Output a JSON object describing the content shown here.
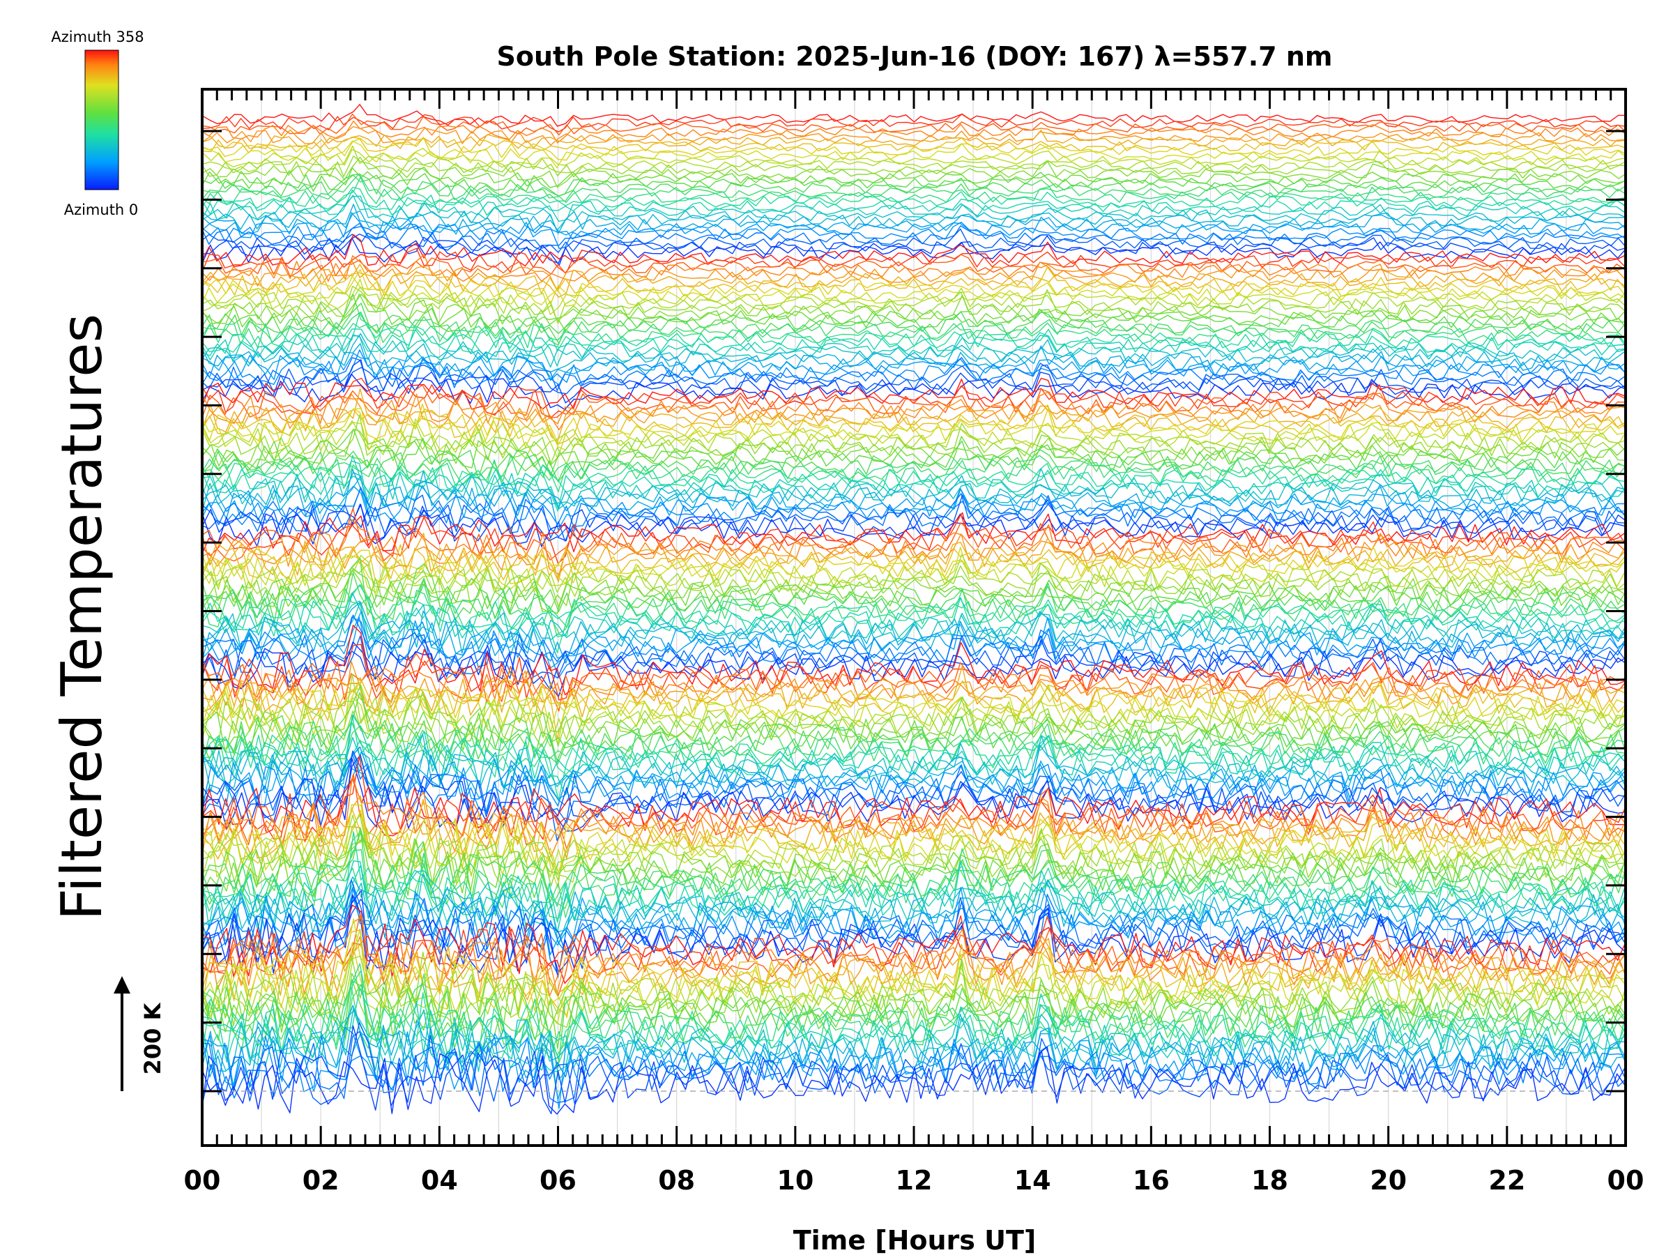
{
  "chart_data": {
    "type": "line",
    "title": "South Pole Station: 2025-Jun-16 (DOY: 167) λ=557.7 nm",
    "xlabel": "Time [Hours UT]",
    "ylabel": "Filtered Temperatures",
    "xlim": [
      0,
      24
    ],
    "x_tick_labels": [
      "00",
      "02",
      "04",
      "06",
      "08",
      "10",
      "12",
      "14",
      "16",
      "18",
      "20",
      "22",
      "00"
    ],
    "colorbar": {
      "top_label": "Azimuth 358",
      "bottom_label": "Azimuth 0",
      "colormap": "rainbow (blue → cyan → green → yellow → red)",
      "range": [
        0,
        358
      ]
    },
    "scale_bar": {
      "label": "200 K",
      "value": 200
    },
    "offset_baselines": 15,
    "series_description": "Many stacked filtered temperature traces, one per azimuth, coloured by azimuth; each stack offset vertically",
    "grid": true,
    "grid_style": "faint vertical lines at each hour",
    "colors": {
      "blue": "#1030e8",
      "cyan": "#20b8d8",
      "green": "#50d040",
      "yellow": "#d8d820",
      "red": "#e82010"
    }
  }
}
